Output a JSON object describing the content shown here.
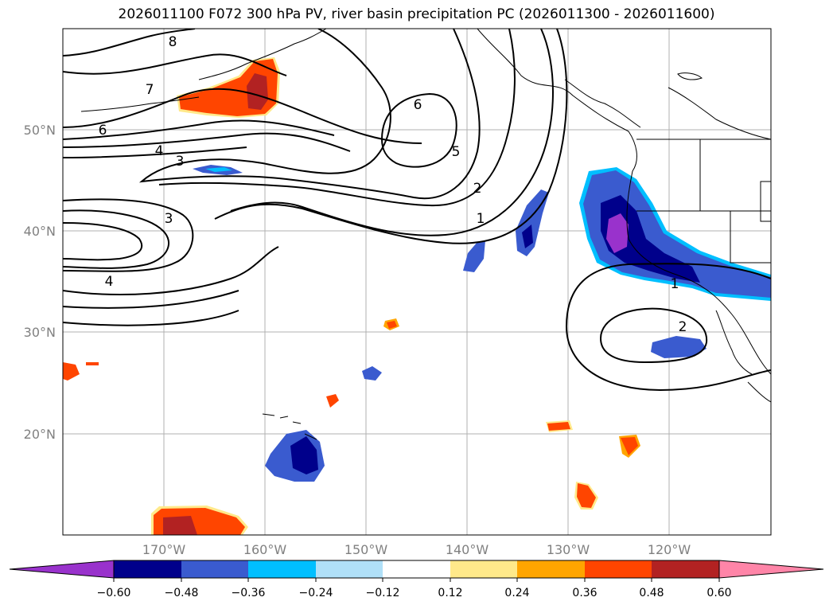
{
  "title": "2026011100 F072 300 hPa PV, river basin precipitation PC (2026011300 - 2026011600)",
  "axes": {
    "lat_labels": [
      "50°N",
      "40°N",
      "30°N",
      "20°N"
    ],
    "lon_labels": [
      "170°W",
      "160°W",
      "150°W",
      "140°W",
      "130°W",
      "120°W"
    ]
  },
  "contour_labels": [
    "8",
    "7",
    "6",
    "4",
    "3",
    "6",
    "5",
    "2",
    "1",
    "3",
    "4",
    "1",
    "2"
  ],
  "colorbar": {
    "ticks": [
      "−0.60",
      "−0.48",
      "−0.36",
      "−0.24",
      "−0.12",
      "0.12",
      "0.24",
      "0.36",
      "0.48",
      "0.60"
    ],
    "colors": [
      "#9932cc",
      "#00008b",
      "#3a5bcf",
      "#00bfff",
      "#b0e0f8",
      "#ffffff",
      "#ffe98a",
      "#ffa500",
      "#ff4500",
      "#b22222",
      "#ff85a8"
    ]
  }
}
